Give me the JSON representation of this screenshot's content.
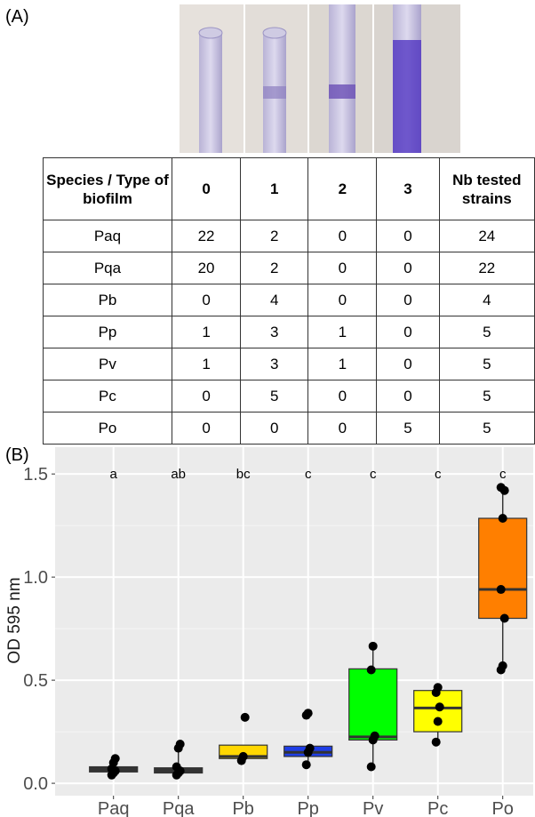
{
  "panel_a": {
    "label": "(A)",
    "table": {
      "header": [
        "Species / Type of biofilm",
        "0",
        "1",
        "2",
        "3",
        "Nb tested strains"
      ],
      "rows": [
        [
          "Paq",
          "22",
          "2",
          "0",
          "0",
          "24"
        ],
        [
          "Pqa",
          "20",
          "2",
          "0",
          "0",
          "22"
        ],
        [
          "Pb",
          "0",
          "4",
          "0",
          "0",
          "4"
        ],
        [
          "Pp",
          "1",
          "3",
          "1",
          "0",
          "5"
        ],
        [
          "Pv",
          "1",
          "3",
          "1",
          "0",
          "5"
        ],
        [
          "Pc",
          "0",
          "5",
          "0",
          "0",
          "5"
        ],
        [
          "Po",
          "0",
          "0",
          "0",
          "5",
          "5"
        ]
      ]
    }
  },
  "chart_data": {
    "type": "box",
    "panel_label": "(B)",
    "y_label": "OD 595 nm",
    "categories": [
      "Paq",
      "Pqa",
      "Pb",
      "Pp",
      "Pv",
      "Pc",
      "Po"
    ],
    "letters": [
      "a",
      "ab",
      "bc",
      "c",
      "c",
      "c",
      "c"
    ],
    "boxes": [
      {
        "color": "#333333",
        "whisker_low": 0.04,
        "q1": 0.055,
        "median": 0.065,
        "q3": 0.08,
        "whisker_high": 0.12,
        "points": [
          0.04,
          0.05,
          0.06,
          0.07,
          0.1,
          0.12
        ]
      },
      {
        "color": "#333333",
        "whisker_low": 0.04,
        "q1": 0.05,
        "median": 0.065,
        "q3": 0.075,
        "whisker_high": 0.19,
        "points": [
          0.04,
          0.05,
          0.06,
          0.08,
          0.17,
          0.19
        ]
      },
      {
        "color": "#ffd700",
        "whisker_low": 0.11,
        "q1": 0.12,
        "median": 0.13,
        "q3": 0.185,
        "whisker_high": 0.185,
        "points": [
          0.11,
          0.13,
          0.32
        ]
      },
      {
        "color": "#1f3ee6",
        "whisker_low": 0.09,
        "q1": 0.13,
        "median": 0.15,
        "q3": 0.18,
        "whisker_high": 0.18,
        "points": [
          0.09,
          0.15,
          0.17,
          0.33,
          0.34
        ]
      },
      {
        "color": "#00ff00",
        "whisker_low": 0.08,
        "q1": 0.21,
        "median": 0.225,
        "q3": 0.555,
        "whisker_high": 0.665,
        "points": [
          0.08,
          0.21,
          0.23,
          0.55,
          0.665
        ]
      },
      {
        "color": "#ffff00",
        "whisker_low": 0.2,
        "q1": 0.25,
        "median": 0.365,
        "q3": 0.45,
        "whisker_high": 0.465,
        "points": [
          0.2,
          0.3,
          0.37,
          0.44,
          0.465
        ]
      },
      {
        "color": "#ff7f00",
        "whisker_low": 0.55,
        "q1": 0.8,
        "median": 0.94,
        "q3": 1.285,
        "whisker_high": 1.435,
        "points": [
          0.55,
          0.57,
          0.8,
          0.94,
          1.285,
          1.42,
          1.435
        ]
      }
    ],
    "ylim": [
      -0.06,
      1.63
    ],
    "yticks": [
      {
        "value": 0,
        "label": "0.0"
      },
      0.5,
      {
        "value": 1,
        "label": "1.0"
      },
      1.5
    ],
    "grid": true
  }
}
